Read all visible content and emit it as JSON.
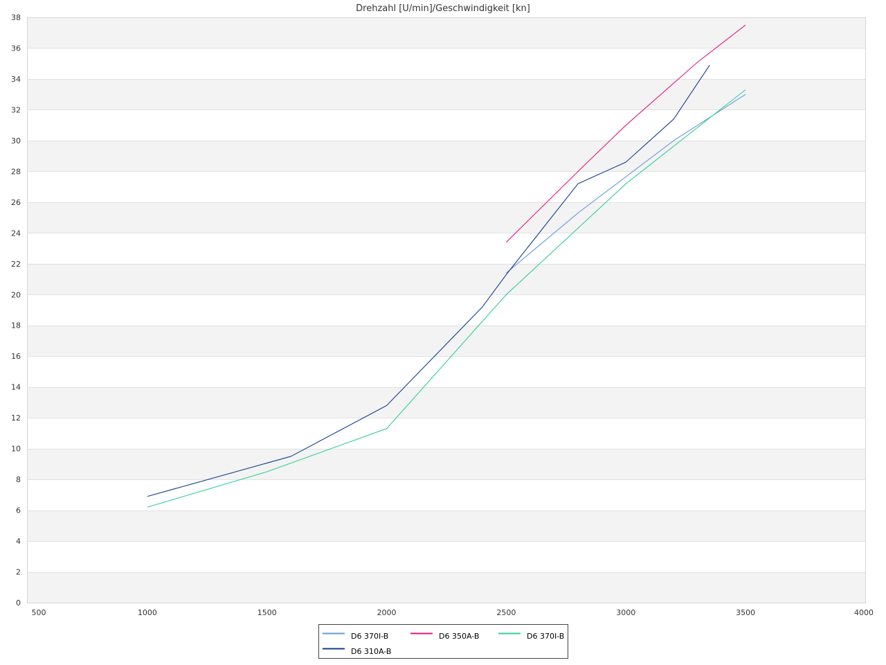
{
  "chart_data": {
    "type": "line",
    "title": "Drehzahl [U/min]/Geschwindigkeit [kn]",
    "xlabel": "",
    "ylabel": "",
    "xlim": [
      500,
      4000
    ],
    "ylim": [
      0,
      38
    ],
    "x_ticks": [
      "500",
      "1000",
      "1500",
      "2000",
      "2500",
      "3000",
      "3500",
      "4000"
    ],
    "y_ticks": [
      "0",
      "2",
      "4",
      "6",
      "8",
      "10",
      "12",
      "14",
      "16",
      "18",
      "20",
      "22",
      "24",
      "26",
      "28",
      "30",
      "32",
      "34",
      "36",
      "38"
    ],
    "grid": "horizontal alternating bands",
    "band_color": "#f3f3f3",
    "legend_position": "bottom",
    "series": [
      {
        "name": "D6 370I-B",
        "color": "#6699dd",
        "points": [
          [
            2500,
            21.4
          ],
          [
            2800,
            25.3
          ],
          [
            3200,
            30.0
          ],
          [
            3500,
            33.0
          ]
        ]
      },
      {
        "name": "D6 350A-B",
        "color": "#e6157f",
        "points": [
          [
            2500,
            23.4
          ],
          [
            2800,
            28.0
          ],
          [
            3000,
            31.0
          ],
          [
            3300,
            35.1
          ],
          [
            3500,
            37.5
          ]
        ]
      },
      {
        "name": "D6 370I-B",
        "color": "#33cc99",
        "points": [
          [
            1000,
            6.2
          ],
          [
            1500,
            8.5
          ],
          [
            2000,
            11.3
          ],
          [
            2500,
            20.0
          ],
          [
            3000,
            27.2
          ],
          [
            3500,
            33.3
          ]
        ]
      },
      {
        "name": "D6 310A-B",
        "color": "#113d8f",
        "points": [
          [
            1000,
            6.9
          ],
          [
            1600,
            9.5
          ],
          [
            2000,
            12.8
          ],
          [
            2400,
            19.2
          ],
          [
            2500,
            21.3
          ],
          [
            2800,
            27.2
          ],
          [
            3000,
            28.6
          ],
          [
            3200,
            31.4
          ],
          [
            3350,
            34.9
          ]
        ]
      }
    ]
  }
}
